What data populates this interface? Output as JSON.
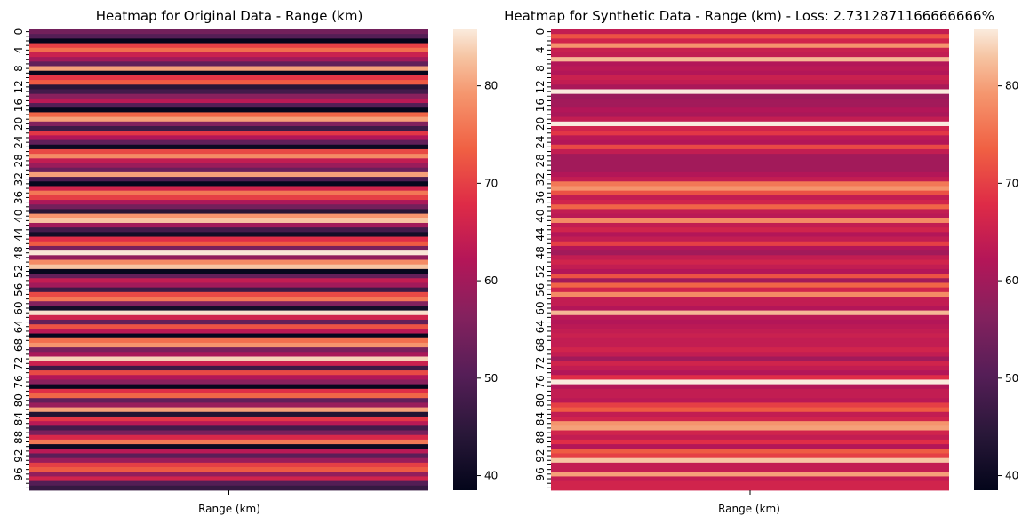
{
  "chart_data": [
    {
      "type": "heatmap",
      "title": "Heatmap for Original Data - Range (km)",
      "xlabel": "Range (km)",
      "ylabel": "",
      "colormap": "rocket",
      "vmin": 38.5,
      "vmax": 85.8,
      "colorbar_ticks": [
        40,
        50,
        60,
        70,
        80
      ],
      "row_tick_labels": [
        0,
        4,
        8,
        12,
        16,
        20,
        24,
        28,
        32,
        36,
        40,
        44,
        48,
        52,
        56,
        60,
        64,
        68,
        72,
        76,
        80,
        84,
        88,
        92,
        96
      ],
      "values": [
        54,
        50,
        38.6,
        70,
        75,
        65,
        60,
        52,
        80,
        39,
        69,
        73,
        44,
        48,
        57,
        63,
        50,
        39,
        74,
        80,
        56,
        47,
        69,
        62,
        52,
        40,
        71,
        78,
        64,
        59,
        53,
        80,
        49,
        39,
        66,
        76,
        70,
        61,
        54,
        44,
        79,
        83,
        60,
        48,
        41,
        68,
        73,
        55,
        85.5,
        58,
        78,
        83,
        39,
        52,
        64,
        60,
        47,
        71,
        76,
        56,
        41,
        85,
        66,
        52,
        72,
        63,
        39,
        75,
        79,
        55,
        61,
        84,
        65,
        47,
        71,
        62,
        57,
        39,
        68,
        74,
        52,
        59,
        80,
        43,
        69,
        63,
        48,
        55,
        67,
        76,
        40,
        63,
        51,
        59,
        70,
        73,
        58,
        66,
        50,
        46
      ]
    },
    {
      "type": "heatmap",
      "title": "Heatmap for Synthetic Data - Range (km) - Loss: 2.7312871166666666%",
      "xlabel": "Range (km)",
      "ylabel": "",
      "colormap": "rocket",
      "vmin": 38.5,
      "vmax": 85.8,
      "colorbar_ticks": [
        40,
        50,
        60,
        70,
        80
      ],
      "row_tick_labels": [
        0,
        4,
        8,
        12,
        16,
        20,
        24,
        28,
        32,
        36,
        40,
        44,
        48,
        52,
        56,
        60,
        64,
        68,
        72,
        76,
        80,
        84,
        88,
        92,
        96
      ],
      "values": [
        64,
        72,
        66,
        79,
        65,
        64,
        82,
        62,
        63,
        62,
        65,
        64,
        61,
        86,
        59,
        60,
        60,
        62,
        61,
        64,
        86,
        66,
        69,
        63,
        62,
        71,
        64,
        60,
        60,
        60,
        60,
        62,
        64,
        76,
        79,
        72,
        64,
        66,
        74,
        64,
        63,
        78,
        64,
        66,
        62,
        64,
        70,
        62,
        60,
        64,
        66,
        64,
        62,
        72,
        60,
        74,
        66,
        78,
        64,
        64,
        62,
        82,
        63,
        62,
        63,
        64,
        65,
        64,
        64,
        66,
        64,
        60,
        66,
        64,
        62,
        68,
        86,
        62,
        64,
        64,
        63,
        70,
        73,
        64,
        66,
        79,
        80,
        66,
        64,
        68,
        62,
        73,
        70,
        83,
        64,
        64,
        80,
        64,
        66,
        66
      ]
    }
  ]
}
